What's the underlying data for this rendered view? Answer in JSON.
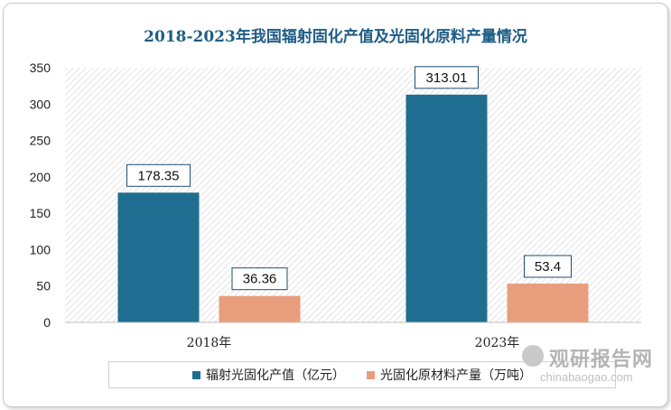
{
  "title": "2018-2023年我国辐射固化产值及光固化原料产量情况",
  "chart_data": {
    "type": "bar",
    "title": "2018-2023年我国辐射固化产值及光固化原料产量情况",
    "categories": [
      "2018年",
      "2023年"
    ],
    "series": [
      {
        "name": "辐射光固化产值（亿元）",
        "values": [
          178.35,
          313.01
        ],
        "labels": [
          "178.35",
          "313.01"
        ],
        "color": "#1f6e91"
      },
      {
        "name": "光固化原材料产量（万吨）",
        "values": [
          36.36,
          53.4
        ],
        "labels": [
          "36.36",
          "53.4"
        ],
        "color": "#e89e7d"
      }
    ],
    "ylim": [
      0,
      350
    ],
    "yticks": [
      "0",
      "50",
      "100",
      "150",
      "200",
      "250",
      "300",
      "350"
    ],
    "grid": false,
    "legend_position": "bottom"
  },
  "watermark": {
    "cn": "观研报告网",
    "en": "chinabaogao.com"
  }
}
